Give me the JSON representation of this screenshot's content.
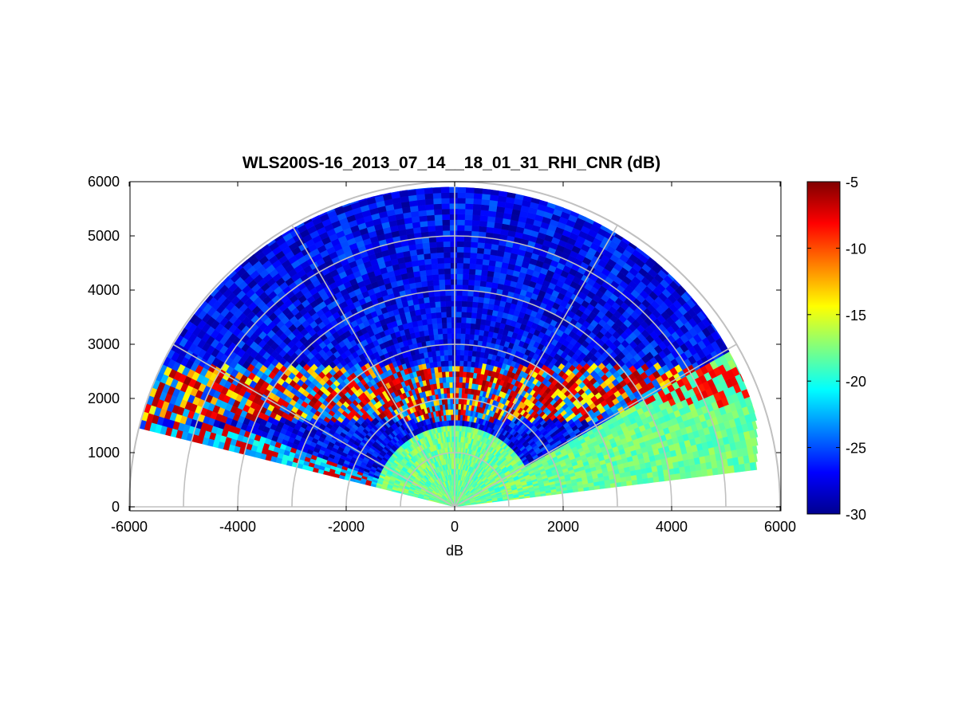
{
  "chart_data": {
    "type": "heatmap",
    "title": "WLS200S-16_2013_07_14__18_01_31_RHI_CNR (dB)",
    "xlabel": "dB",
    "ylabel": "",
    "xlim": [
      -6000,
      6000
    ],
    "ylim": [
      0,
      6000
    ],
    "x_ticks": [
      -6000,
      -4000,
      -2000,
      0,
      2000,
      4000,
      6000
    ],
    "y_ticks": [
      0,
      1000,
      2000,
      3000,
      4000,
      5000,
      6000
    ],
    "polar_grid": {
      "range_rings": [
        1000,
        2000,
        3000,
        4000,
        5000,
        6000
      ],
      "spokes_deg": [
        0,
        30,
        60,
        90,
        120,
        150,
        180
      ]
    },
    "grid": true,
    "colormap": "jet",
    "colorbar": {
      "min": -30,
      "max": -5,
      "ticks": [
        -5,
        -10,
        -15,
        -20,
        -25,
        -30
      ],
      "placement": "right"
    },
    "rhi_scan": {
      "elevation_deg": [
        0,
        180
      ],
      "max_range": 6000,
      "covered_sectors_deg": [
        [
          7,
          165
        ]
      ],
      "max_range_by_elevation": [
        {
          "elevation_deg": 7,
          "range": 5600
        },
        {
          "elevation_deg": 17,
          "range": 5800
        },
        {
          "elevation_deg": 165,
          "range": 6000
        }
      ],
      "cnr_regimes_db": {
        "near_range_0_1500": -18,
        "low_elevation_0_30deg": -18,
        "aerosol_layer_1500_2600": -10,
        "free_troposphere_above_2600": -27
      }
    },
    "colors": {
      "axes_frame": "#000000",
      "grid_lines": "#c0c0c0",
      "colormap_low": "#00008f",
      "colormap_high": "#800000"
    }
  }
}
